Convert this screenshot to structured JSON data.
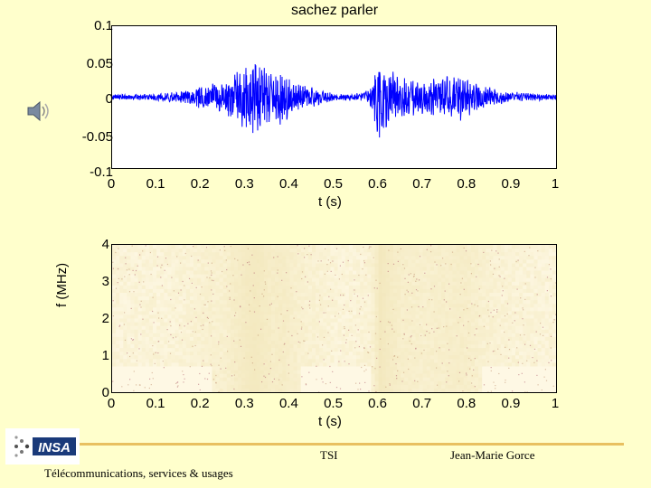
{
  "slide": {
    "title": "sachez parler",
    "footer": {
      "logo_text": "INSA",
      "department": "TSI",
      "author": "Jean-Marie Gorce",
      "caption": "Télécommunications, services & usages"
    },
    "icons": {
      "audio": "speaker-icon",
      "logo": "insa-logo"
    },
    "colors": {
      "background": "#ffffcc",
      "waveform": "#0000ff",
      "footer_rule": "#e8c060"
    }
  },
  "chart_data": [
    {
      "type": "line",
      "title": "sachez parler",
      "xlabel": "t (s)",
      "ylabel": "",
      "xlim": [
        0,
        1
      ],
      "ylim": [
        -0.1,
        0.1
      ],
      "xticks": [
        "0",
        "0.1",
        "0.2",
        "0.3",
        "0.4",
        "0.5",
        "0.6",
        "0.7",
        "0.8",
        "0.9",
        "1"
      ],
      "yticks": [
        "0.1",
        "0.05",
        "0",
        "-0.05",
        "-0.1"
      ],
      "series": [
        {
          "color": "#0000ff",
          "envelope_t": [
            0.0,
            0.05,
            0.1,
            0.15,
            0.18,
            0.2,
            0.22,
            0.25,
            0.28,
            0.3,
            0.32,
            0.34,
            0.36,
            0.38,
            0.4,
            0.42,
            0.45,
            0.5,
            0.54,
            0.56,
            0.58,
            0.6,
            0.62,
            0.65,
            0.7,
            0.75,
            0.78,
            0.8,
            0.83,
            0.86,
            0.9,
            0.95,
            1.0
          ],
          "envelope_amp": [
            0.004,
            0.004,
            0.005,
            0.008,
            0.012,
            0.018,
            0.02,
            0.022,
            0.04,
            0.05,
            0.055,
            0.045,
            0.035,
            0.04,
            0.03,
            0.02,
            0.015,
            0.005,
            0.005,
            0.006,
            0.012,
            0.06,
            0.045,
            0.03,
            0.025,
            0.03,
            0.035,
            0.03,
            0.02,
            0.012,
            0.008,
            0.005,
            0.004
          ]
        }
      ]
    },
    {
      "type": "heatmap",
      "title": "",
      "xlabel": "t (s)",
      "ylabel": "f (MHz)",
      "xlim": [
        0,
        1
      ],
      "ylim": [
        0,
        4
      ],
      "xticks": [
        "0",
        "0.1",
        "0.2",
        "0.3",
        "0.4",
        "0.5",
        "0.6",
        "0.7",
        "0.8",
        "0.9",
        "1"
      ],
      "yticks": [
        "4",
        "3",
        "2",
        "1",
        "0"
      ]
    }
  ]
}
